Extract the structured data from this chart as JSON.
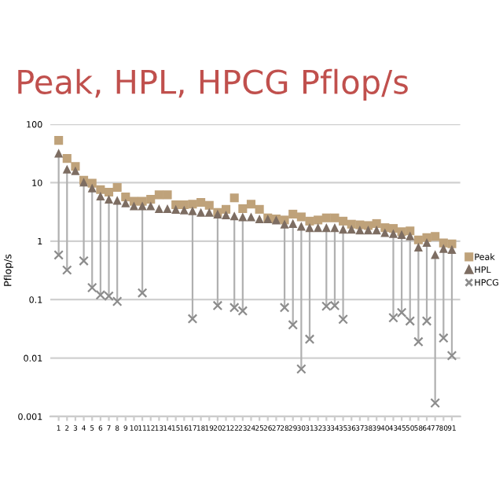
{
  "chart_data": {
    "type": "scatter",
    "title": "Peak, HPL, HPCG Pflop/s",
    "ylabel": "Pflop/s",
    "categories": [
      "1",
      "2",
      "3",
      "4",
      "5",
      "6",
      "7",
      "8",
      "9",
      "10",
      "11",
      "12",
      "13",
      "14",
      "15",
      "16",
      "17",
      "18",
      "19",
      "20",
      "21",
      "22",
      "23",
      "24",
      "25",
      "26",
      "27",
      "28",
      "29",
      "30",
      "31",
      "32",
      "33",
      "34",
      "35",
      "36",
      "37",
      "38",
      "39",
      "40",
      "43",
      "45",
      "50",
      "58",
      "64",
      "77",
      "80",
      "91"
    ],
    "log": "y",
    "ylim": [
      0.001,
      100
    ],
    "yticks": [
      0.001,
      0.01,
      0.1,
      1,
      10,
      100
    ],
    "grid": "y",
    "legend": "right",
    "series": [
      {
        "name": "Peak",
        "color": "#bfa27a",
        "marker": "square",
        "values": [
          53,
          26,
          19,
          11,
          9.8,
          7.6,
          6.9,
          8.3,
          5.7,
          4.8,
          4.8,
          5.2,
          6.2,
          6.2,
          4.2,
          4.2,
          4.3,
          4.6,
          4.1,
          3.1,
          3.5,
          5.5,
          3.6,
          4.3,
          3.5,
          2.5,
          2.4,
          2.3,
          2.9,
          2.6,
          2.2,
          2.3,
          2.5,
          2.5,
          2.2,
          1.95,
          1.9,
          1.85,
          2.0,
          1.7,
          1.65,
          1.45,
          1.5,
          1.05,
          1.15,
          1.2,
          0.93,
          0.9
        ]
      },
      {
        "name": "HPL",
        "color": "#7d6d62",
        "marker": "triangle",
        "values": [
          32,
          17,
          16,
          10.2,
          8.1,
          5.9,
          5.2,
          5.0,
          4.5,
          4.0,
          4.0,
          4.0,
          3.6,
          3.6,
          3.5,
          3.4,
          3.3,
          3.1,
          3.1,
          2.9,
          2.8,
          2.7,
          2.6,
          2.6,
          2.4,
          2.4,
          2.3,
          1.96,
          2.0,
          1.8,
          1.7,
          1.7,
          1.7,
          1.7,
          1.6,
          1.6,
          1.55,
          1.55,
          1.55,
          1.4,
          1.35,
          1.3,
          1.23,
          0.79,
          0.95,
          0.59,
          0.75,
          0.72
        ]
      },
      {
        "name": "HPCG",
        "color": "#8c8c8c",
        "marker": "cross",
        "values": [
          0.58,
          0.32,
          null,
          0.46,
          0.16,
          0.12,
          0.115,
          0.093,
          null,
          null,
          0.13,
          null,
          null,
          null,
          null,
          null,
          0.047,
          null,
          null,
          0.079,
          null,
          0.073,
          0.064,
          null,
          null,
          null,
          null,
          0.073,
          0.037,
          0.0065,
          0.021,
          null,
          0.077,
          0.079,
          0.046,
          null,
          null,
          null,
          null,
          null,
          0.049,
          0.06,
          0.043,
          0.019,
          0.043,
          0.0017,
          0.022,
          0.011
        ]
      }
    ]
  }
}
